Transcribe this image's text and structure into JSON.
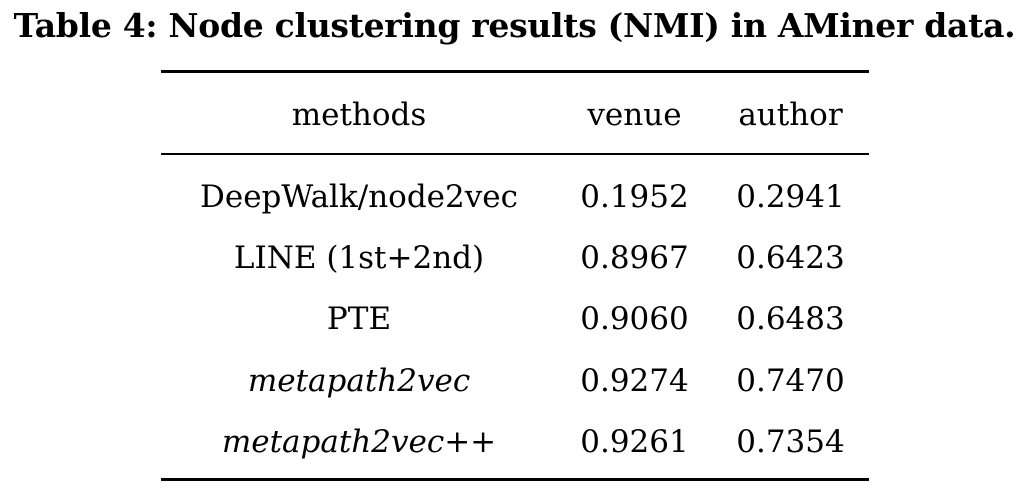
{
  "caption": "Table 4: Node clustering results (NMI) in AMiner data.",
  "table": {
    "headers": {
      "methods": "methods",
      "venue": "venue",
      "author": "author"
    },
    "rows": [
      {
        "method": "DeepWalk/node2vec",
        "venue": "0.1952",
        "author": "0.2941"
      },
      {
        "method": "LINE (1st+2nd)",
        "venue": "0.8967",
        "author": "0.6423"
      },
      {
        "method": "PTE",
        "venue": "0.9060",
        "author": "0.6483"
      },
      {
        "method": "metapath2vec",
        "venue": "0.9274",
        "author": "0.7470"
      },
      {
        "method": "metapath2vec++",
        "venue": "0.9261",
        "author": "0.7354"
      }
    ]
  }
}
